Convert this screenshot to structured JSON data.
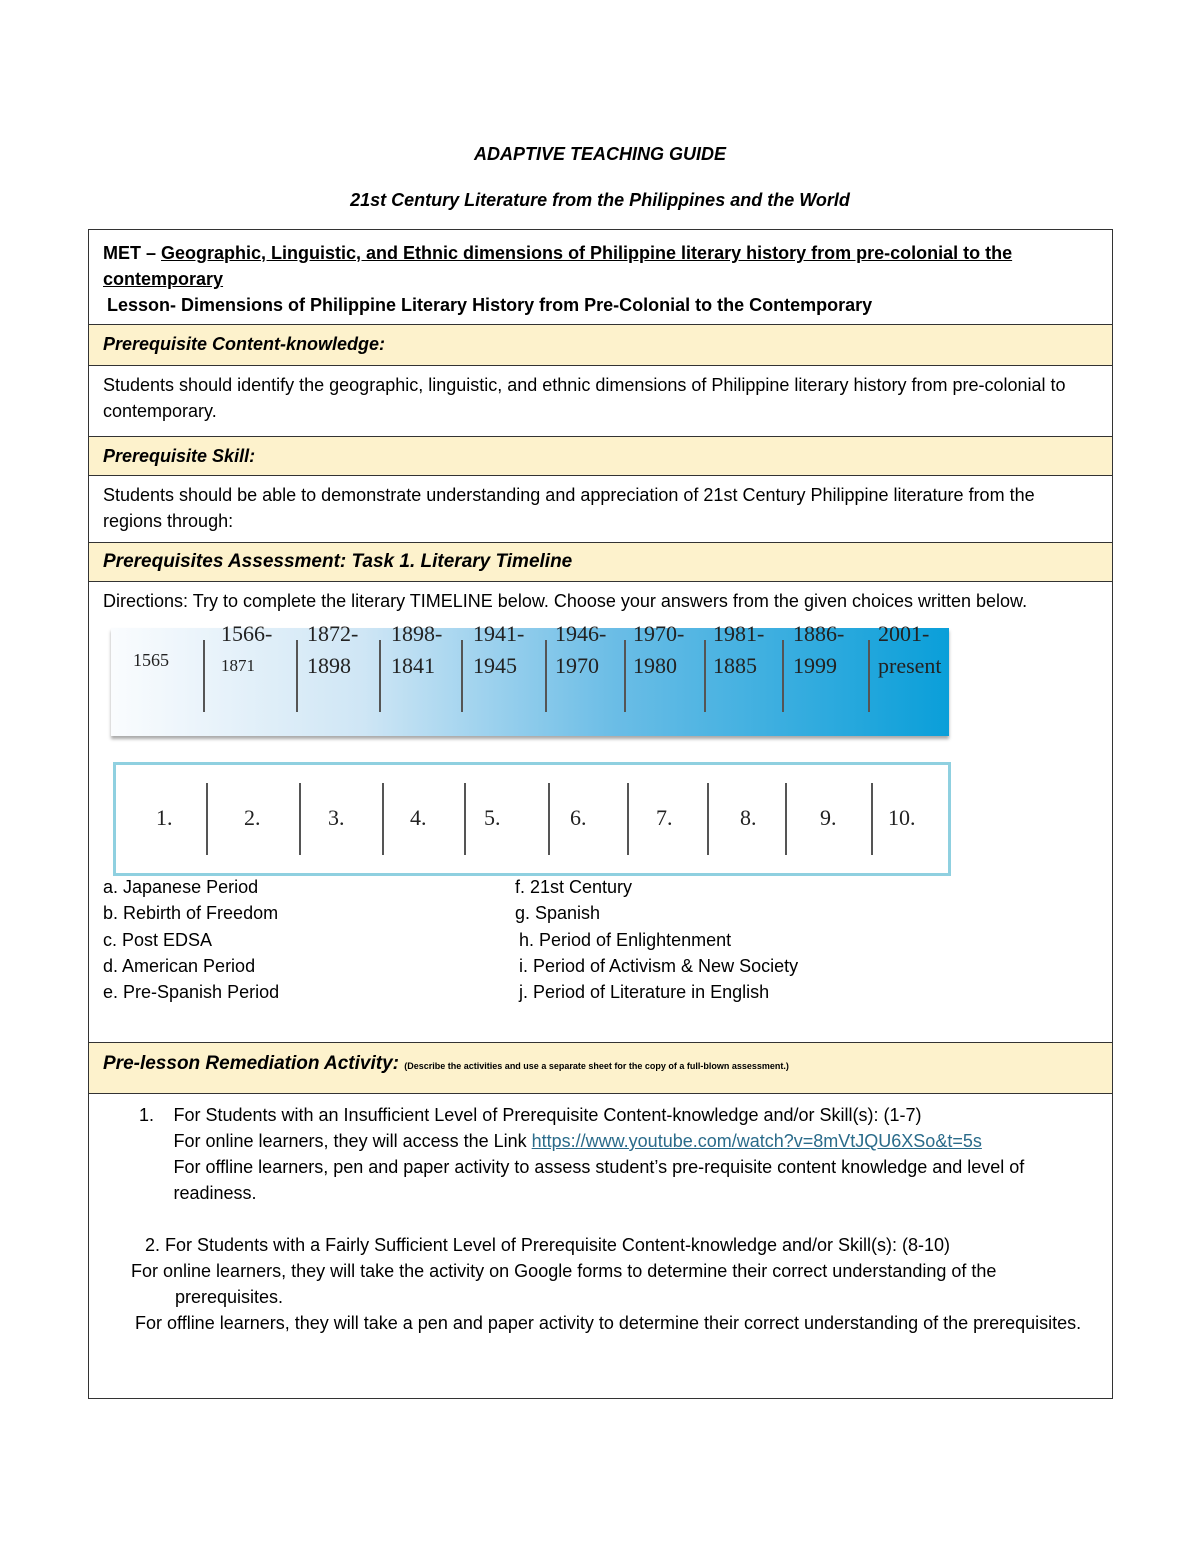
{
  "title": "ADAPTIVE TEACHING GUIDE",
  "subtitle": "21st Century Literature from the Philippines and the World",
  "met_prefix": "MET – ",
  "met_text": "Geographic, Linguistic, and Ethnic dimensions of Philippine literary history from pre-colonial to the contemporary",
  "lesson": "Lesson- Dimensions of Philippine Literary History from Pre-Colonial to the Contemporary",
  "content_knowledge_header": "Prerequisite Content-knowledge:",
  "content_knowledge": "Students should identify the geographic, linguistic, and ethnic dimensions of Philippine literary history from pre-colonial to contemporary.",
  "skill_header": "Prerequisite Skill:",
  "skill": "Students should be able to demonstrate understanding and appreciation of 21st Century Philippine literature from the regions through:",
  "assessment_header": "Prerequisites Assessment: Task 1. Literary Timeline",
  "directions": "Directions: Try to complete the literary TIMELINE below. Choose your answers from the given choices written below.",
  "timeline": [
    {
      "top": "",
      "bottom": "1565"
    },
    {
      "top": "1566-",
      "bottom": "1871"
    },
    {
      "top": "1872-",
      "bottom": "1898"
    },
    {
      "top": "1898-",
      "bottom": "1841"
    },
    {
      "top": "1941-",
      "bottom": "1945"
    },
    {
      "top": "1946-",
      "bottom": "1970"
    },
    {
      "top": "1970-",
      "bottom": "1980"
    },
    {
      "top": "1981-",
      "bottom": "1885"
    },
    {
      "top": "1886-",
      "bottom": "1999"
    },
    {
      "top": "2001-",
      "bottom": "present"
    }
  ],
  "numbers": [
    "1.",
    "2.",
    "3.",
    "4.",
    "5.",
    "6.",
    "7.",
    "8.",
    "9.",
    "10."
  ],
  "choices": [
    "a. Japanese Period",
    "b. Rebirth of Freedom",
    "c. Post EDSA",
    "d. American Period",
    "e. Pre-Spanish Period",
    "f. 21st Century",
    "g. Spanish",
    "h. Period of Enlightenment",
    "i. Period of Activism & New Society",
    "j. Period of Literature in English"
  ],
  "remediation_header": "Pre-lesson Remediation Activity:",
  "remediation_note": "(Describe the activities and use a separate sheet for the copy of a full-blown assessment.)",
  "item1_num": "1.",
  "item1_title": "For Students with an Insufficient Level of Prerequisite Content-knowledge and/or Skill(s): (1-7)",
  "item1_online": "For online learners, they will access the Link ",
  "item1_link": "https://www.youtube.com/watch?v=8mVtJQU6XSo&t=5s",
  "item1_offline": "For offline learners, pen and paper activity to assess student’s pre-requisite content knowledge and level of readiness.",
  "item2_title": "2. For Students with a Fairly Sufficient Level of Prerequisite Content-knowledge and/or Skill(s): (8-10)",
  "item2_online": "For online learners, they will take the activity on Google forms to determine their correct understanding of the prerequisites.",
  "item2_offline": "For offline learners, they will take a pen and paper activity to determine their correct understanding of the prerequisites."
}
